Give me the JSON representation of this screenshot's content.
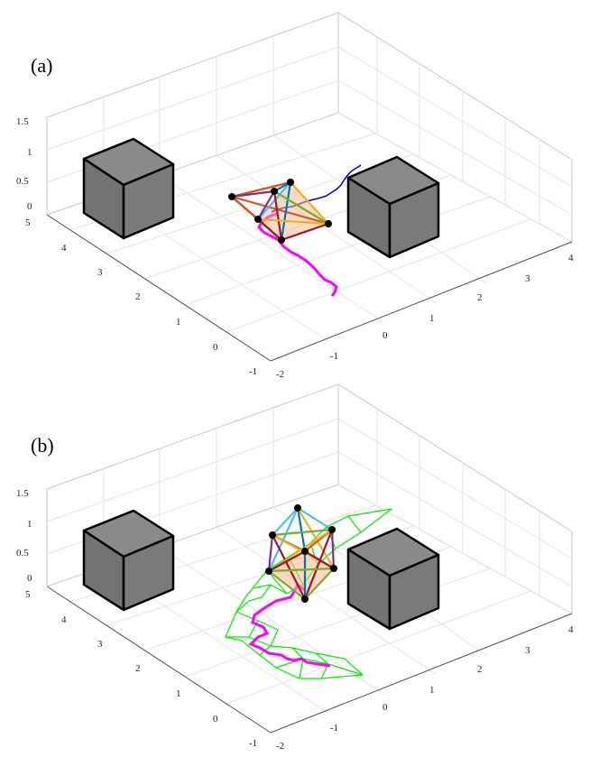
{
  "panels": [
    {
      "label": "(a)",
      "z_ticks": [
        "1.5",
        "1",
        "0.5",
        "0"
      ],
      "y_ticks": [
        "5",
        "4",
        "3",
        "2",
        "1",
        "0",
        "-1"
      ],
      "x_ticks": [
        "-2",
        "-1",
        "0",
        "1",
        "2",
        "3",
        "4"
      ]
    },
    {
      "label": "(b)",
      "z_ticks": [
        "1.5",
        "1",
        "0.5",
        "0"
      ],
      "y_ticks": [
        "5",
        "4",
        "3",
        "2",
        "1",
        "0",
        "-1"
      ],
      "x_ticks": [
        "-2",
        "-1",
        "0",
        "1",
        "2",
        "3",
        "4"
      ]
    }
  ],
  "colors": {
    "grid": "#dddddd",
    "axis": "#bbbbbb",
    "cube_face": "#7f7f7f",
    "cube_edge": "#000000",
    "trajectory": "#ff00ff",
    "trajectory_blue": "#0000cc",
    "mesh": "#00ee00",
    "node": "#000000",
    "sheet": "#f5b98a"
  }
}
